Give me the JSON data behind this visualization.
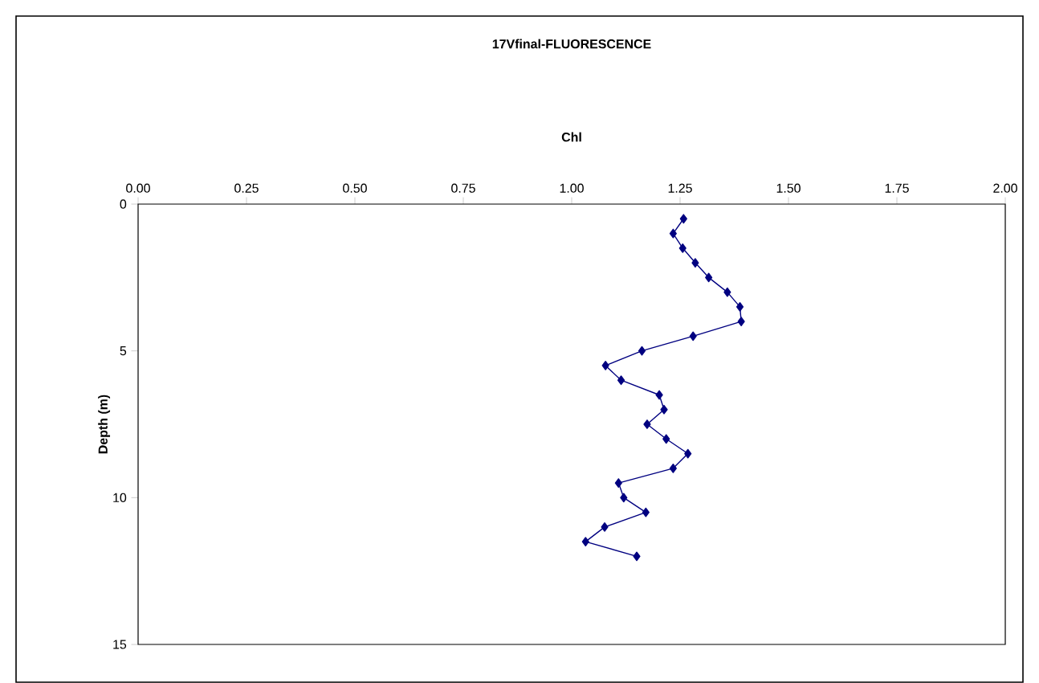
{
  "chart_data": {
    "type": "line",
    "title": "17Vfinal-FLUORESCENCE",
    "xlabel": "Chl",
    "ylabel": "Depth (m)",
    "x": [
      1.258,
      1.234,
      1.256,
      1.285,
      1.316,
      1.359,
      1.388,
      1.391,
      1.28,
      1.162,
      1.078,
      1.114,
      1.202,
      1.213,
      1.174,
      1.218,
      1.268,
      1.234,
      1.108,
      1.12,
      1.171,
      1.076,
      1.032,
      1.15
    ],
    "values": [
      0.5,
      1,
      1.5,
      2,
      2.5,
      3,
      3.5,
      4,
      4.5,
      5,
      5.5,
      6,
      6.5,
      7,
      7.5,
      8,
      8.5,
      9,
      9.5,
      10,
      10.5,
      11,
      11.5,
      12
    ],
    "color": "#000080",
    "marker": "diamond",
    "line_style": "solid",
    "grid": false,
    "xlim": [
      0,
      2
    ],
    "xticks": [
      {
        "value": 0,
        "label": "0.00"
      },
      {
        "value": 0.25,
        "label": "0.25"
      },
      {
        "value": 0.5,
        "label": "0.50"
      },
      {
        "value": 0.75,
        "label": "0.75"
      },
      {
        "value": 1,
        "label": "1.00"
      },
      {
        "value": 1.25,
        "label": "1.25"
      },
      {
        "value": 1.5,
        "label": "1.50"
      },
      {
        "value": 1.75,
        "label": "1.75"
      },
      {
        "value": 2,
        "label": "2.00"
      }
    ],
    "ylim": [
      15,
      0
    ],
    "yticks": [
      0,
      5,
      10,
      15
    ]
  }
}
